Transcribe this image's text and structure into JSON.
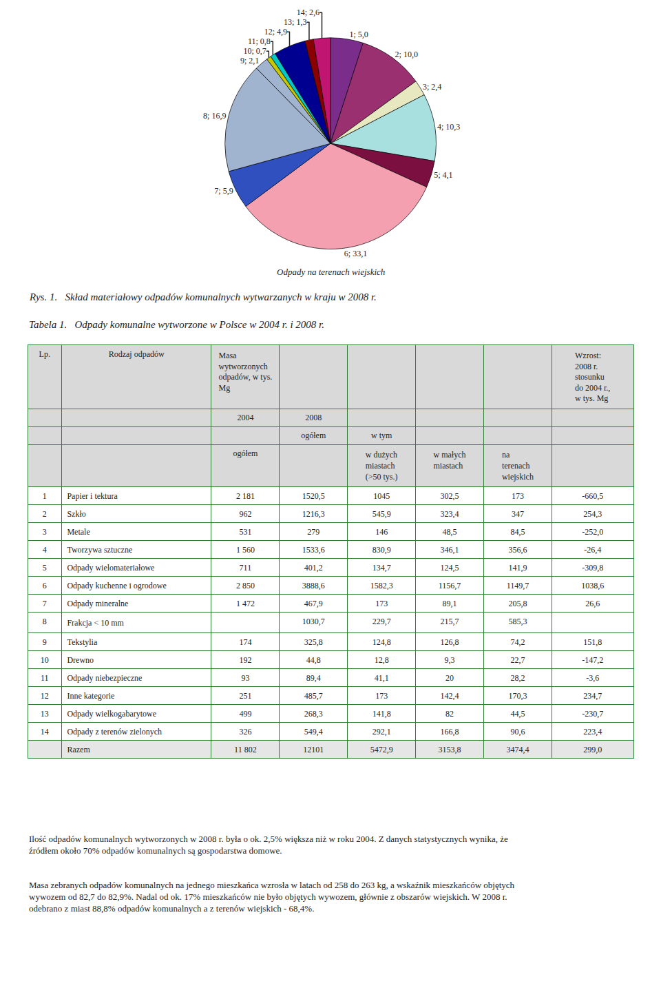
{
  "chart_data": [
    {
      "type": "pie",
      "title": "Rys. 1.   Skład materiałowy odpadów komunalnych wytwarzanych w kraju w 2008 r.",
      "annotations": [
        "Odpady na terenach wiejskich"
      ],
      "categories": [
        "1; 5,0",
        "2; 10,0",
        "3; 2,4",
        "4; 10,3",
        "5; 4,1",
        "6; 33,1",
        "7; 5,9",
        "8; 16,9",
        "9; 2,1",
        "10; 0,7",
        "11; 0,8",
        "12; 4,9",
        "13; 1,3",
        "14; 2,6"
      ],
      "values": [
        5.0,
        10.0,
        2.4,
        10.3,
        4.1,
        33.1,
        5.9,
        16.9,
        2.1,
        0.7,
        0.8,
        4.9,
        1.3,
        2.6
      ],
      "colors": [
        "#7B2D8B",
        "#9B3070",
        "#E8E8C0",
        "#A8E0E0",
        "#7B1040",
        "#F5A0B0",
        "#3050C0",
        "#A0B4D0",
        "#A0B4D0",
        "#C8C800",
        "#00C8C8",
        "#000090",
        "#8B0000",
        "#C01570"
      ],
      "data_labels": true,
      "legend": false
    },
    {
      "type": "table",
      "title": "Tabela 1.   Odpady komunalne wytworzone w Polsce w 2004 r. i 2008 r.",
      "header_rows": [
        [
          "Lp.",
          "Rodzaj odpadów",
          "Masa wytworzonych odpadów, w tys. Mg",
          null,
          null,
          null,
          null,
          "Wzrost:\n2008 r.\nstosunku\ndo 2004 r.,\nw tys. Mg"
        ],
        [
          null,
          null,
          "2004",
          "2008",
          null,
          null,
          null,
          null
        ],
        [
          null,
          null,
          null,
          "ogółem",
          "w tym",
          null,
          null,
          null
        ],
        [
          null,
          null,
          "ogółem",
          null,
          "w dużych\nmiastach\n(>50 tys.)",
          "w małych\nmiastach",
          "na\nterenach\nwiejskich",
          null
        ]
      ],
      "rows": [
        [
          "1",
          "Papier i tektura",
          "2 181",
          "1520,5",
          "1045",
          "302,5",
          "173",
          "-660,5"
        ],
        [
          "2",
          "Szkło",
          "962",
          "1216,3",
          "545,9",
          "323,4",
          "347",
          "254,3"
        ],
        [
          "3",
          "Metale",
          "531",
          "279",
          "146",
          "48,5",
          "84,5",
          "-252,0"
        ],
        [
          "4",
          "Tworzywa sztuczne",
          "1 560",
          "1533,6",
          "830,9",
          "346,1",
          "356,6",
          "-26,4"
        ],
        [
          "5",
          "Odpady wielomateriałowe",
          "711",
          "401,2",
          "134,7",
          "124,5",
          "141,9",
          "-309,8"
        ],
        [
          "6",
          "Odpady kuchenne i ogrodowe",
          "2 850",
          "3888,6",
          "1582,3",
          "1156,7",
          "1149,7",
          "1038,6"
        ],
        [
          "7",
          "Odpady mineralne",
          "1 472",
          "467,9",
          "173",
          "89,1",
          "205,8",
          "26,6"
        ],
        [
          "8",
          "Frakcja < 10 mm",
          null,
          "1030,7",
          "229,7",
          "215,7",
          "585,3",
          null
        ],
        [
          "9",
          "Tekstylia",
          "174",
          "325,8",
          "124,8",
          "126,8",
          "74,2",
          "151,8"
        ],
        [
          "10",
          "Drewno",
          "192",
          "44,8",
          "12,8",
          "9,3",
          "22,7",
          "-147,2"
        ],
        [
          "11",
          "Odpady niebezpieczne",
          "93",
          "89,4",
          "41,1",
          "20",
          "28,2",
          "-3,6"
        ],
        [
          "12",
          "Inne kategorie",
          "251",
          "485,7",
          "173",
          "142,4",
          "170,3",
          "234,7"
        ],
        [
          "13",
          "Odpady wielkogabarytowe",
          "499",
          "268,3",
          "141,8",
          "82",
          "44,5",
          "-230,7"
        ],
        [
          "14",
          "Odpady z terenów zielonych",
          "326",
          "549,4",
          "292,1",
          "166,8",
          "90,6",
          "223,4"
        ],
        [
          null,
          "Razem",
          "11 802",
          "12101",
          "5472,9",
          "3153,8",
          "3474,4",
          "299,0"
        ]
      ],
      "annotations": [
        "    Ilość odpadów komunalnych wytworzonych w 2008 r. była o ok. 2,5% większa niż w roku 2004. Z danych statystycznych wynika, że źródłem około 70% odpadów komunalnych są gospodarstwa domowe.",
        "    Masa zebranych odpadów komunalnych na jednego mieszkańca wzrosła w latach od 258 do 263 kg, a wskaźnik mieszkańców objętych wywozem od 82,7 do 82,9%. Nadal od ok. 17% mieszkańców nie było objętych wywozem, głównie z obszarów wiejskich. W 2008 r. odebrano z miast 88,8% odpadów komunalnych a z terenów wiejskich - 68,4%."
      ]
    }
  ]
}
